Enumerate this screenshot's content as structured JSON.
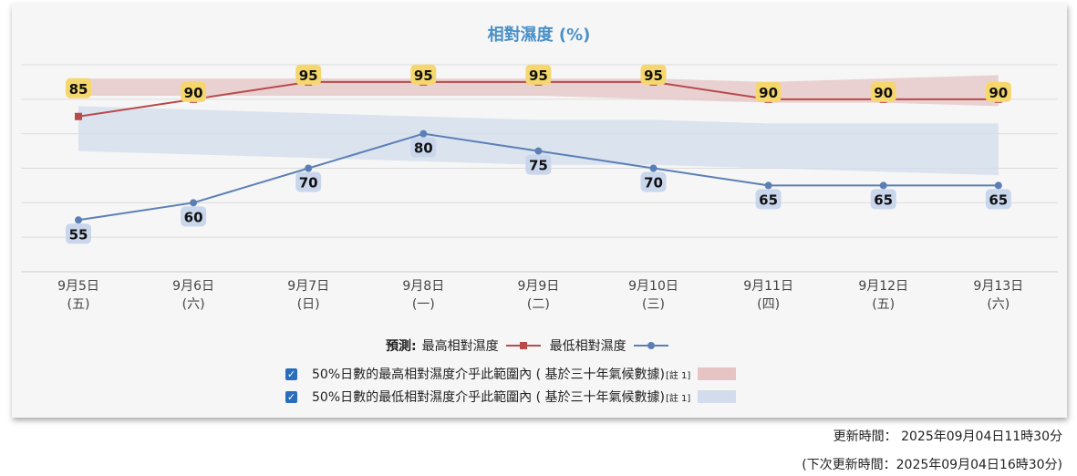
{
  "chart_data": {
    "type": "line",
    "title": "相對濕度 (%)",
    "categories": [
      "9月5日",
      "9月6日",
      "9月7日",
      "9月8日",
      "9月9日",
      "9月10日",
      "9月11日",
      "9月12日",
      "9月13日"
    ],
    "weekdays": [
      "(五)",
      "(六)",
      "(日)",
      "(一)",
      "(二)",
      "(三)",
      "(四)",
      "(五)",
      "(六)"
    ],
    "ylim": [
      40,
      100
    ],
    "grid": true,
    "series": [
      {
        "name": "最高相對濕度",
        "values": [
          85,
          90,
          95,
          95,
          95,
          95,
          90,
          90,
          90
        ],
        "color": "#b94a4a",
        "label_bg": "#f5d76e",
        "marker": "square"
      },
      {
        "name": "最低相對濕度",
        "values": [
          55,
          60,
          70,
          80,
          75,
          70,
          65,
          65,
          65
        ],
        "color": "#5b7fb5",
        "label_bg": "#c9d6ec",
        "marker": "circle"
      }
    ],
    "bands": [
      {
        "name": "50%日數的最高相對濕度介乎此範圍內 ( 基於三十年氣候數據)",
        "color": "#e6c4c4",
        "low": [
          91,
          91,
          91,
          91,
          91,
          90,
          89,
          89,
          88
        ],
        "high": [
          96,
          96,
          96,
          96,
          96,
          96,
          95,
          96,
          97
        ]
      },
      {
        "name": "50%日數的最低相對濕度介乎此範圍內 ( 基於三十年氣候數據)",
        "color": "#d2dcec",
        "low": [
          75,
          74,
          73,
          72,
          71,
          71,
          70,
          69,
          68
        ],
        "high": [
          88,
          87,
          86,
          85,
          84,
          84,
          83,
          83,
          83
        ]
      }
    ],
    "legend": "bottom"
  },
  "legend": {
    "forecast_label": "預測:",
    "max_label": "最高相對濕度",
    "min_label": "最低相對濕度",
    "band_max_label": "50%日數的最高相對濕度介乎此範圍內 ( 基於三十年氣候數據)",
    "band_min_label": "50%日數的最低相對濕度介乎此範圍內 ( 基於三十年氣候數據)",
    "note": "[註 1]",
    "checkbox_mark": "✓"
  },
  "footer": {
    "updated": "更新時間： 2025年09月04日11時30分",
    "next_update": "(下次更新時間：2025年09月04日16時30分)"
  }
}
